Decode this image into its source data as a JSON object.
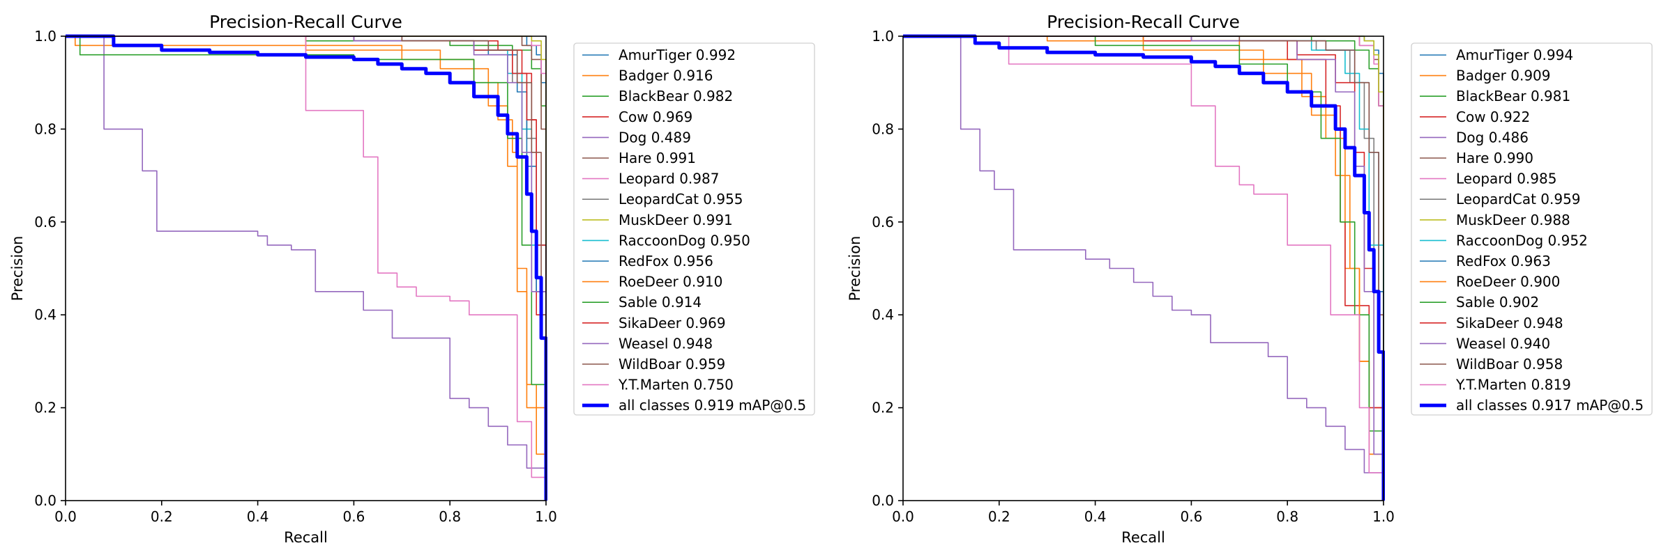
{
  "chart_data": [
    {
      "type": "line",
      "title": "Precision-Recall Curve",
      "xlabel": "Recall",
      "ylabel": "Precision",
      "xlim": [
        0,
        1
      ],
      "ylim": [
        0,
        1
      ],
      "xticks": [
        "0.0",
        "0.2",
        "0.4",
        "0.6",
        "0.8",
        "1.0"
      ],
      "yticks": [
        "0.0",
        "0.2",
        "0.4",
        "0.6",
        "0.8",
        "1.0"
      ],
      "grid": false,
      "legend_position": "outside-right",
      "series": [
        {
          "name": "AmurTiger 0.992",
          "color": "#1f77b4",
          "x": [
            0,
            0.9,
            0.96,
            0.98,
            0.99,
            1.0
          ],
          "y": [
            1,
            1,
            0.98,
            0.96,
            0.9,
            0
          ]
        },
        {
          "name": "Badger 0.916",
          "color": "#ff7f0e",
          "x": [
            0,
            0.02,
            0.2,
            0.7,
            0.85,
            0.9,
            0.93,
            0.94,
            0.96,
            0.98,
            1.0
          ],
          "y": [
            1,
            0.98,
            0.98,
            0.95,
            0.9,
            0.82,
            0.75,
            0.45,
            0.25,
            0.1,
            0
          ]
        },
        {
          "name": "BlackBear 0.982",
          "color": "#2ca02c",
          "x": [
            0,
            0.2,
            0.5,
            0.8,
            0.93,
            0.97,
            0.99,
            1.0
          ],
          "y": [
            1,
            1,
            0.99,
            0.98,
            0.97,
            0.93,
            0.85,
            0
          ]
        },
        {
          "name": "Cow 0.969",
          "color": "#d62728",
          "x": [
            0,
            0.3,
            0.7,
            0.9,
            0.95,
            0.97,
            0.98,
            1.0
          ],
          "y": [
            1,
            1,
            0.99,
            0.97,
            0.92,
            0.82,
            0.4,
            0
          ]
        },
        {
          "name": "Dog 0.489",
          "color": "#9467bd",
          "x": [
            0,
            0.07,
            0.08,
            0.15,
            0.16,
            0.19,
            0.4,
            0.42,
            0.47,
            0.52,
            0.58,
            0.62,
            0.68,
            0.77,
            0.8,
            0.84,
            0.88,
            0.92,
            0.96,
            0.98,
            1.0
          ],
          "y": [
            1,
            1,
            0.8,
            0.8,
            0.71,
            0.58,
            0.57,
            0.55,
            0.54,
            0.45,
            0.45,
            0.41,
            0.35,
            0.35,
            0.22,
            0.2,
            0.16,
            0.12,
            0.07,
            0.07,
            0
          ]
        },
        {
          "name": "Hare 0.991",
          "color": "#8c564b",
          "x": [
            0,
            0.85,
            0.95,
            0.97,
            0.99,
            1.0
          ],
          "y": [
            1,
            1,
            0.98,
            0.95,
            0.8,
            0
          ]
        },
        {
          "name": "Leopard 0.987",
          "color": "#e377c2",
          "x": [
            0,
            0.9,
            0.97,
            0.99,
            1.0
          ],
          "y": [
            1,
            1,
            0.98,
            0.92,
            0
          ]
        },
        {
          "name": "LeopardCat 0.955",
          "color": "#7f7f7f",
          "x": [
            0,
            0.6,
            0.85,
            0.93,
            0.96,
            0.98,
            1.0
          ],
          "y": [
            1,
            0.99,
            0.97,
            0.9,
            0.78,
            0.45,
            0
          ]
        },
        {
          "name": "MuskDeer 0.991",
          "color": "#bcbd22",
          "x": [
            0,
            0.9,
            0.97,
            0.99,
            1.0
          ],
          "y": [
            1,
            1,
            0.99,
            0.95,
            0
          ]
        },
        {
          "name": "RaccoonDog 0.950",
          "color": "#17becf",
          "x": [
            0,
            0.6,
            0.85,
            0.92,
            0.95,
            0.97,
            1.0
          ],
          "y": [
            1,
            0.99,
            0.97,
            0.92,
            0.8,
            0.55,
            0
          ]
        },
        {
          "name": "RedFox 0.956",
          "color": "#1f77b4",
          "x": [
            0,
            0.7,
            0.88,
            0.94,
            0.96,
            0.98,
            1.0
          ],
          "y": [
            1,
            0.99,
            0.96,
            0.88,
            0.72,
            0.45,
            0
          ]
        },
        {
          "name": "RoeDeer 0.910",
          "color": "#ff7f0e",
          "x": [
            0,
            0.5,
            0.78,
            0.88,
            0.92,
            0.94,
            0.96,
            1.0
          ],
          "y": [
            1,
            0.97,
            0.93,
            0.85,
            0.72,
            0.5,
            0.2,
            0
          ]
        },
        {
          "name": "Sable 0.914",
          "color": "#2ca02c",
          "x": [
            0,
            0.03,
            0.25,
            0.6,
            0.85,
            0.92,
            0.95,
            0.97,
            1.0
          ],
          "y": [
            1,
            0.96,
            0.96,
            0.95,
            0.9,
            0.78,
            0.55,
            0.25,
            0
          ]
        },
        {
          "name": "SikaDeer 0.969",
          "color": "#d62728",
          "x": [
            0,
            0.6,
            0.85,
            0.93,
            0.96,
            0.98,
            1.0
          ],
          "y": [
            1,
            0.99,
            0.97,
            0.92,
            0.82,
            0.55,
            0
          ]
        },
        {
          "name": "Weasel 0.948",
          "color": "#9467bd",
          "x": [
            0,
            0.6,
            0.85,
            0.92,
            0.95,
            0.97,
            1.0
          ],
          "y": [
            1,
            0.99,
            0.96,
            0.9,
            0.75,
            0.45,
            0
          ]
        },
        {
          "name": "WildBoar 0.959",
          "color": "#8c564b",
          "x": [
            0,
            0.7,
            0.88,
            0.94,
            0.97,
            0.99,
            1.0
          ],
          "y": [
            1,
            0.99,
            0.97,
            0.9,
            0.75,
            0.4,
            0
          ]
        },
        {
          "name": "Y.T.Marten 0.750",
          "color": "#e377c2",
          "x": [
            0,
            0.5,
            0.5,
            0.62,
            0.62,
            0.65,
            0.65,
            0.69,
            0.73,
            0.8,
            0.84,
            0.92,
            0.94,
            0.97,
            1.0
          ],
          "y": [
            1,
            1,
            0.84,
            0.84,
            0.74,
            0.74,
            0.49,
            0.46,
            0.44,
            0.43,
            0.4,
            0.4,
            0.17,
            0.05,
            0
          ]
        },
        {
          "name": "all classes 0.919 mAP@0.5",
          "color": "#0000ff",
          "bold": true,
          "x": [
            0,
            0.07,
            0.1,
            0.2,
            0.3,
            0.4,
            0.5,
            0.6,
            0.65,
            0.7,
            0.75,
            0.8,
            0.85,
            0.9,
            0.92,
            0.94,
            0.96,
            0.97,
            0.98,
            0.99,
            1.0
          ],
          "y": [
            1,
            1,
            0.98,
            0.97,
            0.965,
            0.96,
            0.955,
            0.95,
            0.94,
            0.93,
            0.92,
            0.9,
            0.87,
            0.83,
            0.79,
            0.74,
            0.66,
            0.58,
            0.48,
            0.35,
            0
          ]
        }
      ]
    },
    {
      "type": "line",
      "title": "Precision-Recall Curve",
      "xlabel": "Recall",
      "ylabel": "Precision",
      "xlim": [
        0,
        1
      ],
      "ylim": [
        0,
        1
      ],
      "xticks": [
        "0.0",
        "0.2",
        "0.4",
        "0.6",
        "0.8",
        "1.0"
      ],
      "yticks": [
        "0.0",
        "0.2",
        "0.4",
        "0.6",
        "0.8",
        "1.0"
      ],
      "grid": false,
      "legend_position": "outside-right",
      "series": [
        {
          "name": "AmurTiger 0.994",
          "color": "#1f77b4",
          "x": [
            0,
            0.9,
            0.96,
            0.98,
            0.99,
            1.0
          ],
          "y": [
            1,
            1,
            0.99,
            0.97,
            0.92,
            0
          ]
        },
        {
          "name": "Badger 0.909",
          "color": "#ff7f0e",
          "x": [
            0,
            0.3,
            0.7,
            0.83,
            0.88,
            0.92,
            0.95,
            0.97,
            1.0
          ],
          "y": [
            1,
            0.99,
            0.95,
            0.87,
            0.78,
            0.5,
            0.3,
            0.1,
            0
          ]
        },
        {
          "name": "BlackBear 0.981",
          "color": "#2ca02c",
          "x": [
            0,
            0.5,
            0.85,
            0.94,
            0.97,
            0.99,
            1.0
          ],
          "y": [
            1,
            1,
            0.99,
            0.97,
            0.93,
            0.85,
            0
          ]
        },
        {
          "name": "Cow 0.922",
          "color": "#d62728",
          "x": [
            0,
            0.5,
            0.8,
            0.88,
            0.91,
            0.92,
            0.95,
            0.97,
            1.0
          ],
          "y": [
            1,
            0.99,
            0.95,
            0.85,
            0.6,
            0.42,
            0.42,
            0.2,
            0
          ]
        },
        {
          "name": "Dog 0.486",
          "color": "#9467bd",
          "x": [
            0,
            0.11,
            0.12,
            0.15,
            0.16,
            0.19,
            0.22,
            0.23,
            0.38,
            0.43,
            0.48,
            0.52,
            0.56,
            0.6,
            0.64,
            0.76,
            0.8,
            0.84,
            0.88,
            0.92,
            0.96,
            1.0
          ],
          "y": [
            1,
            1,
            0.8,
            0.8,
            0.71,
            0.67,
            0.67,
            0.54,
            0.52,
            0.5,
            0.47,
            0.44,
            0.41,
            0.4,
            0.34,
            0.31,
            0.22,
            0.2,
            0.16,
            0.11,
            0.06,
            0
          ]
        },
        {
          "name": "Hare 0.990",
          "color": "#8c564b",
          "x": [
            0,
            0.85,
            0.95,
            0.98,
            0.99,
            1.0
          ],
          "y": [
            1,
            1,
            0.98,
            0.95,
            0.85,
            0
          ]
        },
        {
          "name": "Leopard 0.985",
          "color": "#e377c2",
          "x": [
            0,
            0.8,
            0.95,
            0.98,
            0.99,
            1.0
          ],
          "y": [
            1,
            1,
            0.98,
            0.94,
            0.85,
            0
          ]
        },
        {
          "name": "LeopardCat 0.959",
          "color": "#7f7f7f",
          "x": [
            0,
            0.6,
            0.86,
            0.93,
            0.96,
            0.98,
            1.0
          ],
          "y": [
            1,
            0.99,
            0.97,
            0.9,
            0.78,
            0.45,
            0
          ]
        },
        {
          "name": "MuskDeer 0.988",
          "color": "#bcbd22",
          "x": [
            0,
            0.85,
            0.96,
            0.98,
            0.99,
            1.0
          ],
          "y": [
            1,
            1,
            0.99,
            0.96,
            0.88,
            0
          ]
        },
        {
          "name": "RaccoonDog 0.952",
          "color": "#17becf",
          "x": [
            0,
            0.6,
            0.85,
            0.92,
            0.95,
            0.97,
            1.0
          ],
          "y": [
            1,
            0.99,
            0.97,
            0.92,
            0.8,
            0.55,
            0
          ]
        },
        {
          "name": "RedFox 0.963",
          "color": "#1f77b4",
          "x": [
            0,
            0.7,
            0.88,
            0.94,
            0.97,
            0.99,
            1.0
          ],
          "y": [
            1,
            0.99,
            0.97,
            0.9,
            0.75,
            0.45,
            0
          ]
        },
        {
          "name": "RoeDeer 0.900",
          "color": "#ff7f0e",
          "x": [
            0,
            0.5,
            0.75,
            0.85,
            0.9,
            0.93,
            0.95,
            0.97,
            1.0
          ],
          "y": [
            1,
            0.97,
            0.92,
            0.83,
            0.7,
            0.5,
            0.3,
            0.1,
            0
          ]
        },
        {
          "name": "Sable 0.902",
          "color": "#2ca02c",
          "x": [
            0,
            0.4,
            0.7,
            0.8,
            0.87,
            0.91,
            0.94,
            0.97,
            1.0
          ],
          "y": [
            1,
            0.98,
            0.94,
            0.88,
            0.78,
            0.6,
            0.4,
            0.15,
            0
          ]
        },
        {
          "name": "SikaDeer 0.948",
          "color": "#d62728",
          "x": [
            0,
            0.6,
            0.82,
            0.9,
            0.94,
            0.96,
            0.98,
            1.0
          ],
          "y": [
            1,
            0.99,
            0.96,
            0.9,
            0.75,
            0.5,
            0.2,
            0
          ]
        },
        {
          "name": "Weasel 0.940",
          "color": "#9467bd",
          "x": [
            0,
            0.6,
            0.82,
            0.9,
            0.94,
            0.96,
            0.98,
            1.0
          ],
          "y": [
            1,
            0.99,
            0.95,
            0.88,
            0.72,
            0.45,
            0.1,
            0
          ]
        },
        {
          "name": "WildBoar 0.958",
          "color": "#8c564b",
          "x": [
            0,
            0.7,
            0.88,
            0.94,
            0.97,
            0.99,
            1.0
          ],
          "y": [
            1,
            0.99,
            0.97,
            0.9,
            0.75,
            0.4,
            0
          ]
        },
        {
          "name": "Y.T.Marten 0.819",
          "color": "#e377c2",
          "x": [
            0,
            0.22,
            0.22,
            0.6,
            0.6,
            0.65,
            0.65,
            0.7,
            0.73,
            0.8,
            0.8,
            0.89,
            0.89,
            0.93,
            0.95,
            0.97,
            1.0
          ],
          "y": [
            1,
            1,
            0.94,
            0.94,
            0.85,
            0.85,
            0.72,
            0.68,
            0.66,
            0.66,
            0.55,
            0.55,
            0.4,
            0.4,
            0.2,
            0.06,
            0
          ]
        },
        {
          "name": "all classes 0.917 mAP@0.5",
          "color": "#0000ff",
          "bold": true,
          "x": [
            0,
            0.11,
            0.15,
            0.2,
            0.3,
            0.4,
            0.5,
            0.6,
            0.65,
            0.7,
            0.75,
            0.8,
            0.85,
            0.9,
            0.92,
            0.94,
            0.96,
            0.97,
            0.98,
            0.99,
            1.0
          ],
          "y": [
            1,
            1,
            0.985,
            0.975,
            0.965,
            0.96,
            0.955,
            0.945,
            0.935,
            0.92,
            0.9,
            0.88,
            0.85,
            0.8,
            0.76,
            0.7,
            0.62,
            0.54,
            0.45,
            0.32,
            0
          ]
        }
      ]
    }
  ]
}
